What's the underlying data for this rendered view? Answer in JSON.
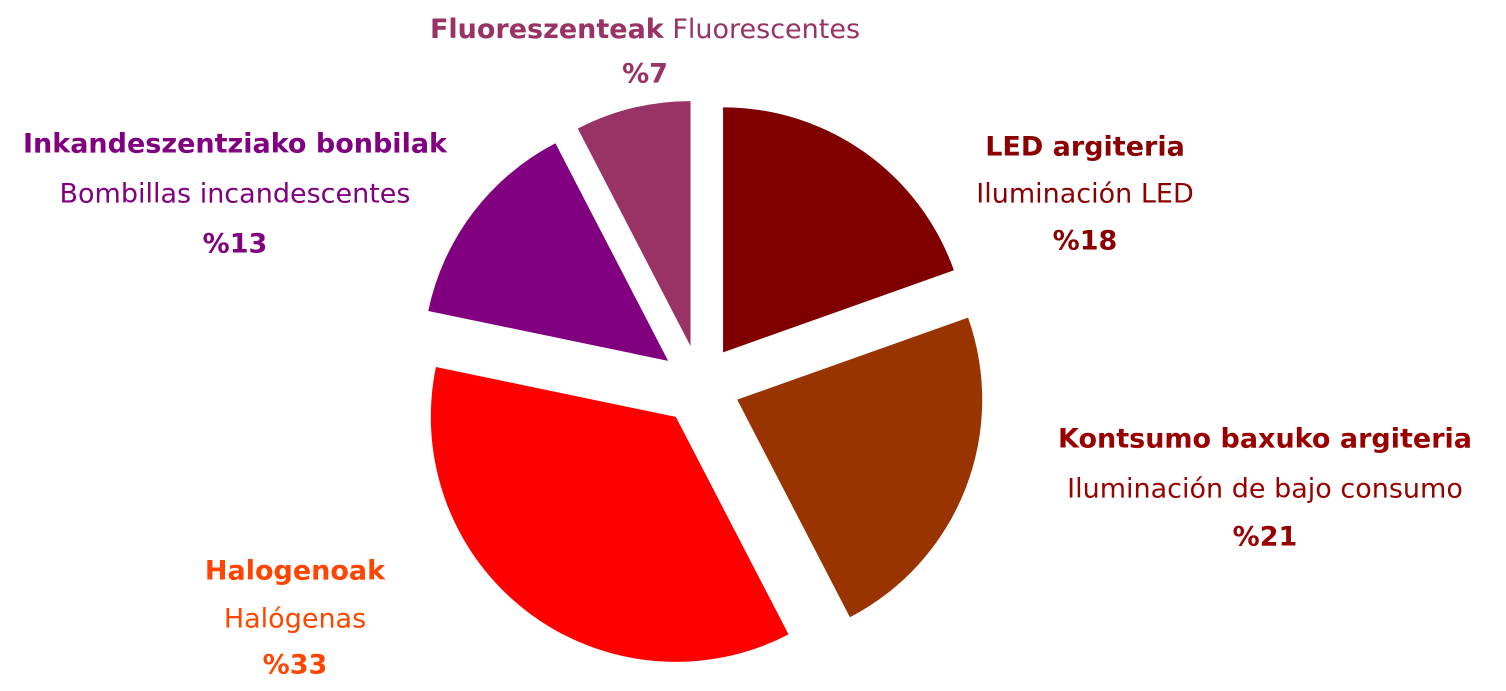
{
  "chart_data": {
    "type": "pie",
    "categories": [
      "LED argiteria",
      "Kontsumo baxuko argiteria",
      "Halogenoak",
      "Inkandeszentziako bonbilak",
      "Fluoreszenteak"
    ],
    "subcategories": [
      "Iluminación LED",
      "Iluminación de bajo consumo",
      "Halógenas",
      "Bombillas incandescentes",
      "Fluorescentes"
    ],
    "values": [
      18,
      21,
      33,
      13,
      7
    ],
    "value_labels": [
      "%18",
      "%21",
      "%33",
      "%13",
      "%7"
    ],
    "colors": [
      "#800000",
      "#993300",
      "#ff0000",
      "#800080",
      "#993366"
    ],
    "label_colors": [
      "#8b0000",
      "#990000",
      "#ff4500",
      "#800080",
      "#993366"
    ],
    "exploded": true
  }
}
